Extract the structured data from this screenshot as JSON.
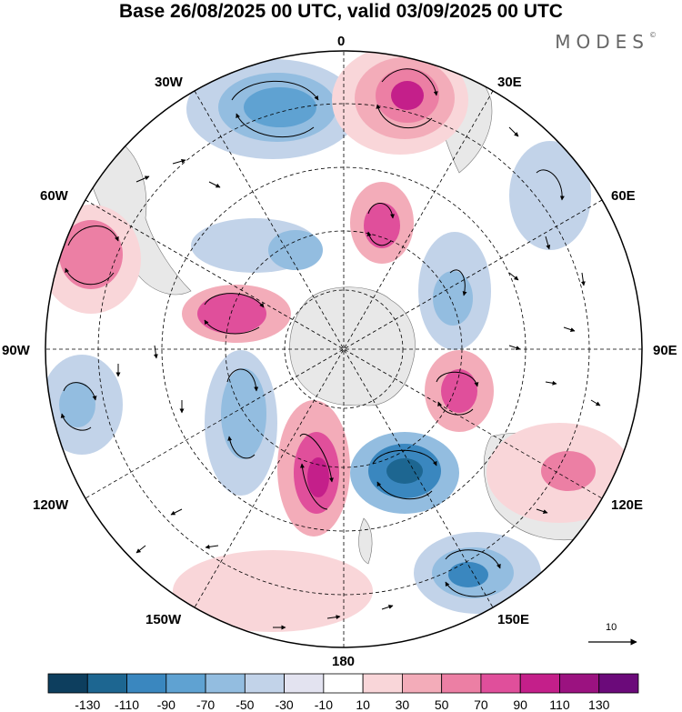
{
  "title": "Base 26/08/2025 00 UTC, valid 03/09/2025 00 UTC",
  "brand": "MODES",
  "brand_mark": "©",
  "longitude_labels": {
    "lon_0": "0",
    "lon_30e": "30E",
    "lon_60e": "60E",
    "lon_90e": "90E",
    "lon_120e": "120E",
    "lon_150e": "150E",
    "lon_180": "180",
    "lon_150w": "150W",
    "lon_120w": "120W",
    "lon_90w": "90W",
    "lon_60w": "60W",
    "lon_30w": "30W"
  },
  "reference_vector": {
    "value": "10"
  },
  "colorbar": {
    "ticks": [
      "-130",
      "-110",
      "-90",
      "-70",
      "-50",
      "-30",
      "-10",
      "10",
      "30",
      "50",
      "70",
      "90",
      "110",
      "130"
    ],
    "colors": [
      "#0d3e5e",
      "#1d6691",
      "#3a87bf",
      "#5fa2d2",
      "#93bde0",
      "#c2d3e9",
      "#e3e3f0",
      "#ffffff",
      "#f9d6d9",
      "#f3acb9",
      "#ec7fa4",
      "#e04f9b",
      "#c41f8a",
      "#9b1280",
      "#6b0a7a"
    ]
  },
  "colors": {
    "neg_strong": "#3a87bf",
    "pos_strong": "#e04f9b",
    "land": "#e6e6e6"
  }
}
